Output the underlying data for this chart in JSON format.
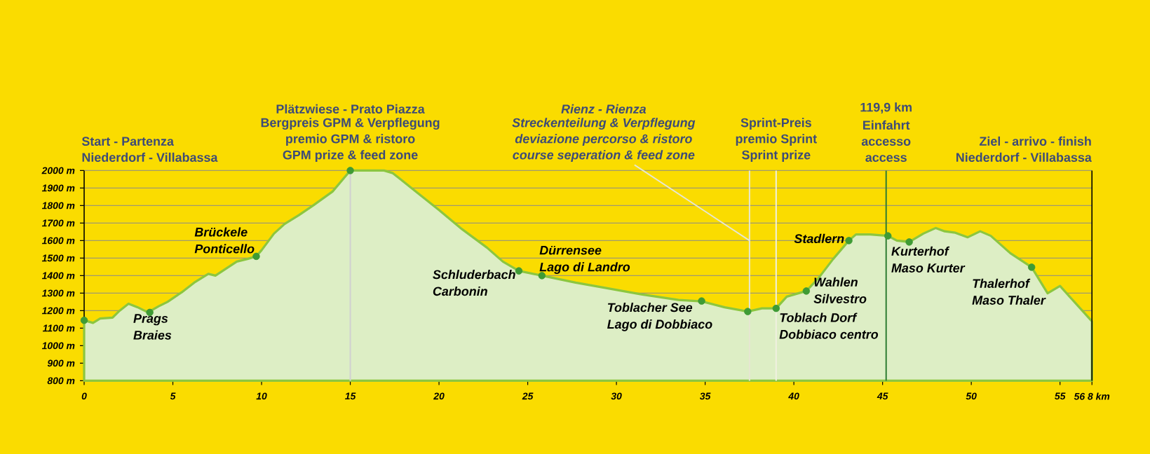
{
  "chart_data": {
    "type": "area",
    "series": [
      {
        "color": "#8cc63f",
        "x": [
          0,
          0.5,
          0.9,
          1.6,
          2.0,
          2.5,
          3.0,
          3.6,
          4.2,
          4.7,
          5.5,
          6.2,
          7.0,
          7.4,
          8.0,
          8.6,
          9.2,
          9.7,
          10.0,
          10.7,
          11.3,
          12.1,
          12.9,
          14.0,
          15.0,
          15.8,
          16.9,
          17.4,
          18.7,
          20.0,
          21.3,
          22.7,
          23.6,
          24.5,
          25.8,
          27.7,
          29.2,
          31.4,
          33.5,
          34.8,
          36.1,
          37.4,
          38.2,
          39.0,
          39.6,
          40.7,
          41.4,
          42.2,
          43.1,
          43.5,
          44.3,
          45.3,
          45.8,
          46.5,
          47.3,
          48.0,
          48.5,
          49.1,
          49.8,
          50.5,
          51.1,
          52.2,
          53.4,
          54.3,
          55.0,
          55.9,
          56.8
        ],
        "values": [
          1145,
          1130,
          1155,
          1160,
          1200,
          1240,
          1220,
          1190,
          1225,
          1250,
          1305,
          1360,
          1410,
          1400,
          1440,
          1480,
          1495,
          1510,
          1545,
          1640,
          1695,
          1745,
          1800,
          1880,
          2000,
          2000,
          2000,
          1985,
          1880,
          1775,
          1665,
          1560,
          1480,
          1427,
          1400,
          1360,
          1333,
          1293,
          1261,
          1253,
          1219,
          1195,
          1213,
          1213,
          1280,
          1312,
          1387,
          1493,
          1600,
          1635,
          1635,
          1627,
          1600,
          1592,
          1640,
          1672,
          1653,
          1645,
          1619,
          1653,
          1627,
          1528,
          1448,
          1299,
          1341,
          1240,
          1139
        ]
      },
      {
        "type": "scatter",
        "color": "#3f9b35",
        "x": [
          0,
          3.7,
          9.7,
          15,
          24.5,
          25.8,
          34.8,
          37.4,
          39,
          40.7,
          43.1,
          45.3,
          46.5,
          53.4
        ],
        "values": [
          1145,
          1190,
          1510,
          2000,
          1427,
          1400,
          1255,
          1195,
          1213,
          1312,
          1600,
          1627,
          1592,
          1448
        ]
      }
    ],
    "xlim": [
      0,
      56.8
    ],
    "ylim": [
      800,
      2000
    ],
    "xticks": [
      0,
      5,
      10,
      15,
      20,
      25,
      30,
      35,
      40,
      45,
      50,
      55,
      {
        "value": 56.8,
        "label": "56 8 km"
      }
    ],
    "yticks": [
      {
        "value": 800,
        "label": "800 m"
      },
      {
        "value": 900,
        "label": "900 m"
      },
      {
        "value": 1000,
        "label": "1000 m"
      },
      {
        "value": 1100,
        "label": "1100 m"
      },
      {
        "value": 1200,
        "label": "1200 m"
      },
      {
        "value": 1300,
        "label": "1300 m"
      },
      {
        "value": 1400,
        "label": "1400 m"
      },
      {
        "value": 1500,
        "label": "1500 m"
      },
      {
        "value": 1600,
        "label": "1600 m"
      },
      {
        "value": 1700,
        "label": "1700 m"
      },
      {
        "value": 1800,
        "label": "1800 m"
      },
      {
        "value": 1900,
        "label": "1900 m"
      },
      {
        "value": 2000,
        "label": "2000 m"
      }
    ],
    "grid": "y",
    "ref_lines": [
      {
        "axis": "x",
        "value": 15,
        "color": "#d0d0d0"
      },
      {
        "axis": "x",
        "value": 37.5,
        "color": "#e6e6d2"
      },
      {
        "axis": "x",
        "value": 39,
        "color": "#f0f0e0"
      },
      {
        "axis": "x",
        "value": 45.2,
        "color": "#2e7d32"
      }
    ],
    "annotations": [
      "Start - Partenza",
      "Niederdorf - Villabassa",
      "Plätzwiese - Prato Piazza",
      "Bergpreis GPM & Verpflegung",
      "premio GPM & ristoro",
      "GPM prize & feed zone",
      "Rienz - Rienza",
      "Streckenteilung & Verpflegung",
      "deviazione percorso & ristoro",
      {
        "text": "course seperation & feed zone",
        "x": 37.5,
        "y": 1600
      },
      "Sprint-Preis",
      "premio Sprint",
      "Sprint prize",
      "119,9 km",
      "Einfahrt",
      "accesso",
      "access",
      "Ziel - arrivo - finish",
      "Niederdorf - Villabassa",
      {
        "text": "Prags",
        "x": 3.7,
        "y": 1190
      },
      {
        "text": "Braies",
        "x": 3.7,
        "y": 1190
      },
      {
        "text": "Brückele",
        "x": 9.7,
        "y": 1510
      },
      {
        "text": "Ponticello",
        "x": 9.7,
        "y": 1510
      },
      {
        "text": "Schluderbach",
        "x": 24.5,
        "y": 1427
      },
      {
        "text": "Carbonin",
        "x": 24.5,
        "y": 1427
      },
      {
        "text": "Dürrensee",
        "x": 25.8,
        "y": 1400
      },
      {
        "text": "Lago di Landro",
        "x": 25.8,
        "y": 1400
      },
      {
        "text": "Toblacher See",
        "x": 34.8,
        "y": 1255
      },
      {
        "text": "Lago di Dobbiaco",
        "x": 34.8,
        "y": 1255
      },
      {
        "text": "Toblach Dorf",
        "x": 39,
        "y": 1213
      },
      {
        "text": "Dobbiaco centro",
        "x": 39,
        "y": 1213
      },
      {
        "text": "Wahlen",
        "x": 40.7,
        "y": 1312
      },
      {
        "text": "Silvestro",
        "x": 40.7,
        "y": 1312
      },
      {
        "text": "Stadlern",
        "x": 43.1,
        "y": 1600
      },
      {
        "text": "Kurterhof",
        "x": 46.5,
        "y": 1592
      },
      {
        "text": "Maso Kurter",
        "x": 46.5,
        "y": 1592
      },
      {
        "text": "Thalerhof",
        "x": 53.4,
        "y": 1448
      },
      {
        "text": "Maso Thaler",
        "x": 53.4,
        "y": 1448
      }
    ]
  }
}
